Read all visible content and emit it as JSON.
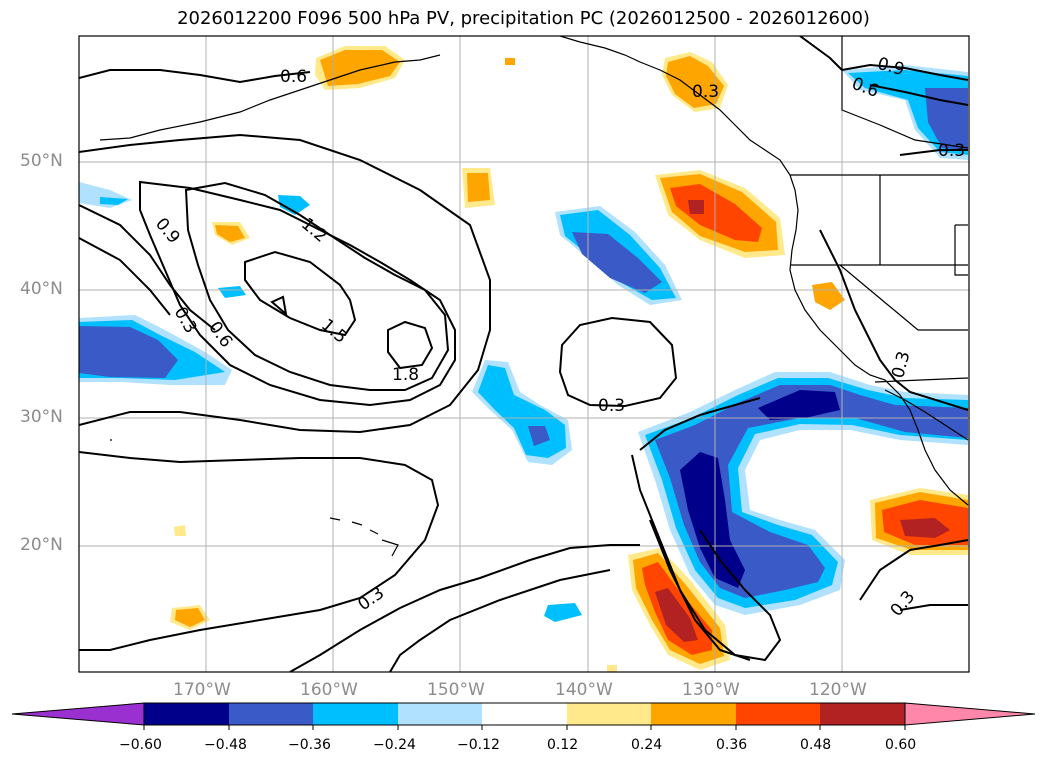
{
  "title": "2026012200 F096 500 hPa PV, precipitation PC (2026012500 - 2026012600)",
  "lat_labels": [
    "50°N",
    "40°N",
    "30°N",
    "20°N"
  ],
  "lon_labels": [
    "170°W",
    "160°W",
    "150°W",
    "140°W",
    "130°W",
    "120°W"
  ],
  "contour_labels": [
    "0.6",
    "0.9",
    "0.3",
    "0.6",
    "1.2",
    "1.5",
    "1.8",
    "0.3",
    "0.3",
    "0.3",
    "0.9",
    "0.6",
    "0.3",
    "0.3",
    "0.3"
  ],
  "colorbar": {
    "ticks": [
      "−0.60",
      "−0.48",
      "−0.36",
      "−0.24",
      "−0.12",
      "0.12",
      "0.24",
      "0.36",
      "0.48",
      "0.60"
    ],
    "colors": [
      "#9b30d0",
      "#00008b",
      "#3a5ac8",
      "#00bfff",
      "#b0e2ff",
      "#ffffff",
      "#ffe98a",
      "#ffa500",
      "#ff4500",
      "#b22222",
      "#ff88aa"
    ]
  },
  "fill_colors": {
    "neg_light": "#b0e2ff",
    "neg_mid": "#00bfff",
    "neg_strong": "#3a5ac8",
    "neg_max": "#00008b",
    "pos_light": "#ffe98a",
    "pos_mid": "#ffa500",
    "pos_strong": "#ff4500",
    "pos_max": "#b22222"
  }
}
